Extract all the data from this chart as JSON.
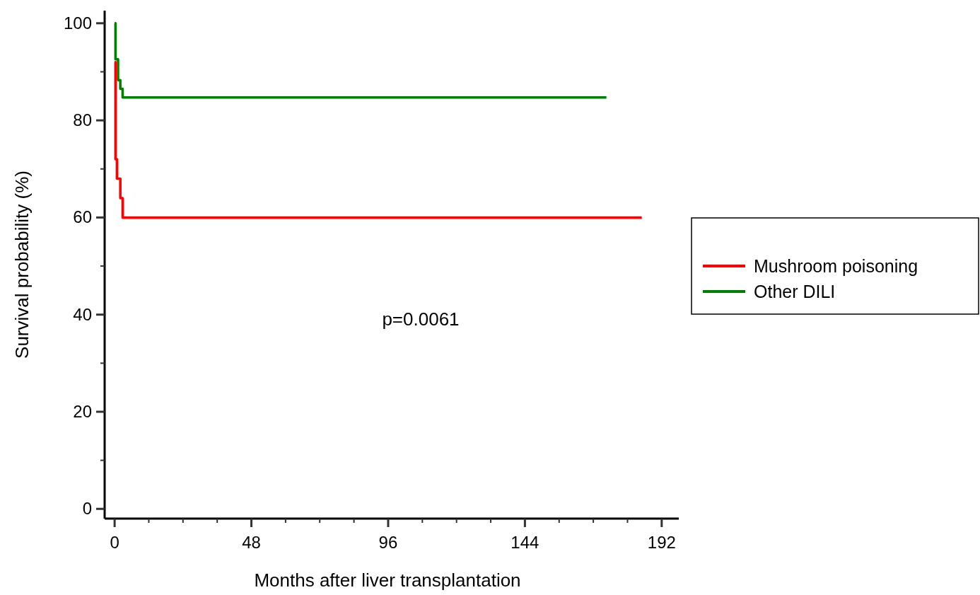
{
  "chart_data": {
    "type": "step",
    "xlabel": "Months after liver transplantation",
    "ylabel": "Survival probability (%)",
    "xlim": [
      -3.5,
      198
    ],
    "ylim": [
      -2,
      102.6
    ],
    "xticks": [
      0,
      {
        "value": 12,
        "label": null
      },
      {
        "value": 24,
        "label": null
      },
      {
        "value": 36,
        "label": null
      },
      48,
      {
        "value": 60,
        "label": null
      },
      {
        "value": 72,
        "label": null
      },
      {
        "value": 84,
        "label": null
      },
      96,
      {
        "value": 108,
        "label": null
      },
      {
        "value": 120,
        "label": null
      },
      {
        "value": 132,
        "label": null
      },
      144,
      {
        "value": 156,
        "label": null
      },
      {
        "value": 168,
        "label": null
      },
      {
        "value": 180,
        "label": null
      },
      192
    ],
    "yticks": [
      0,
      {
        "value": 10,
        "label": null
      },
      20,
      {
        "value": 30,
        "label": null
      },
      40,
      {
        "value": 50,
        "label": null
      },
      60,
      {
        "value": 70,
        "label": null
      },
      80,
      {
        "value": 90,
        "label": null
      },
      100
    ],
    "series": [
      {
        "name": "Mushroom poisoning",
        "color": "#ff0000",
        "x": [
          0,
          0.3,
          0.8,
          2,
          2.8,
          185
        ],
        "values": [
          92,
          72,
          68,
          64,
          60,
          60
        ]
      },
      {
        "name": "Other DILI",
        "color": "#008000",
        "x": [
          0,
          0.3,
          1.2,
          2,
          2.8,
          172.6
        ],
        "values": [
          100,
          92.6,
          88.3,
          86.5,
          84.7,
          84.7
        ]
      }
    ],
    "annotations": [
      "p=0.0061"
    ],
    "legend": "right",
    "grid": false,
    "line_style": "solid"
  }
}
